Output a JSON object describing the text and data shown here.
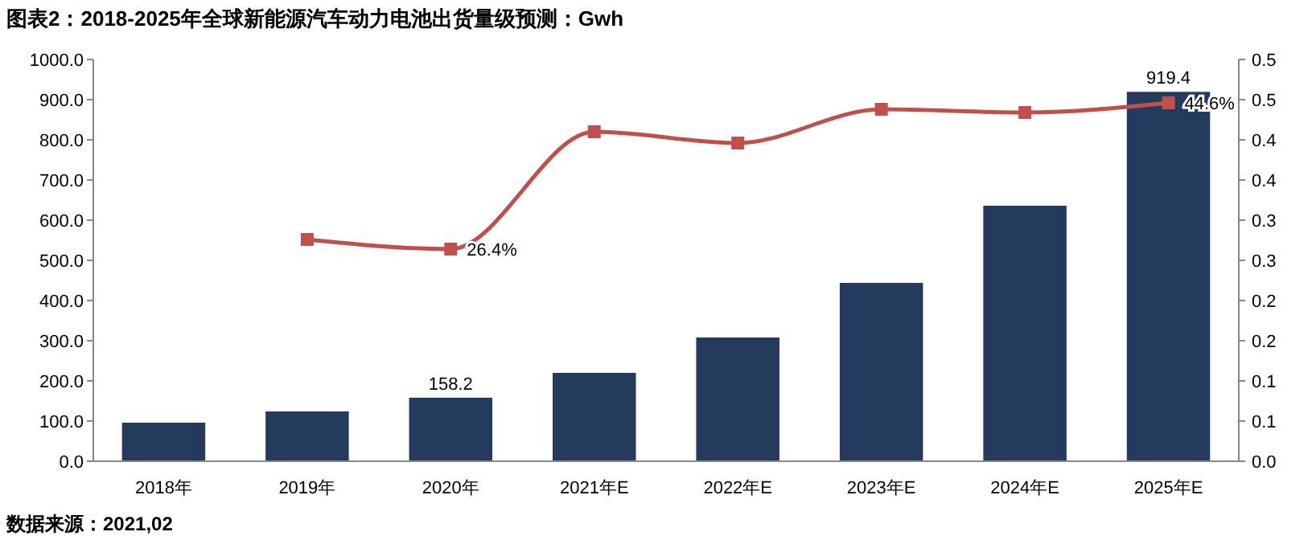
{
  "chart_data": {
    "type": "bar",
    "title": "图表2：2018-2025年全球新能源汽车动力电池出货量级预测：Gwh",
    "categories": [
      "2018年",
      "2019年",
      "2020年",
      "2021年E",
      "2022年E",
      "2023年E",
      "2024年E",
      "2025年E"
    ],
    "series": [
      {
        "color": "#253b5e",
        "values": [
          96,
          124,
          158.2,
          220,
          308,
          444,
          636,
          919.4
        ],
        "value_labels": [
          null,
          null,
          "158.2",
          null,
          null,
          null,
          null,
          "919.4"
        ]
      },
      {
        "type": "line",
        "axis": "y2",
        "color": "#c0504d",
        "values": [
          null,
          0.276,
          0.264,
          0.41,
          0.396,
          0.438,
          0.434,
          0.446
        ],
        "value_labels": [
          null,
          null,
          "26.4%",
          null,
          null,
          null,
          null,
          "44.6%"
        ]
      }
    ],
    "ylim": [
      0,
      1000
    ],
    "yticks": [
      {
        "value": 0,
        "label": "0.0"
      },
      {
        "value": 100,
        "label": "100.0"
      },
      {
        "value": 200,
        "label": "200.0"
      },
      {
        "value": 300,
        "label": "300.0"
      },
      {
        "value": 400,
        "label": "400.0"
      },
      {
        "value": 500,
        "label": "500.0"
      },
      {
        "value": 600,
        "label": "600.0"
      },
      {
        "value": 700,
        "label": "700.0"
      },
      {
        "value": 800,
        "label": "800.0"
      },
      {
        "value": 900,
        "label": "900.0"
      },
      {
        "value": 1000,
        "label": "1000.0"
      }
    ],
    "y2lim": [
      0,
      0.5
    ],
    "y2ticks": [
      {
        "value": 0,
        "label": "0.0"
      },
      {
        "value": 0.05,
        "label": "0.1"
      },
      {
        "value": 0.1,
        "label": "0.1"
      },
      {
        "value": 0.15,
        "label": "0.2"
      },
      {
        "value": 0.2,
        "label": "0.2"
      },
      {
        "value": 0.25,
        "label": "0.3"
      },
      {
        "value": 0.3,
        "label": "0.3"
      },
      {
        "value": 0.35,
        "label": "0.4"
      },
      {
        "value": 0.4,
        "label": "0.4"
      },
      {
        "value": 0.45,
        "label": "0.5"
      },
      {
        "value": 0.5,
        "label": "0.5"
      }
    ],
    "marker": "square",
    "grid": false,
    "annotations": [
      "数据来源：2021,02"
    ]
  }
}
